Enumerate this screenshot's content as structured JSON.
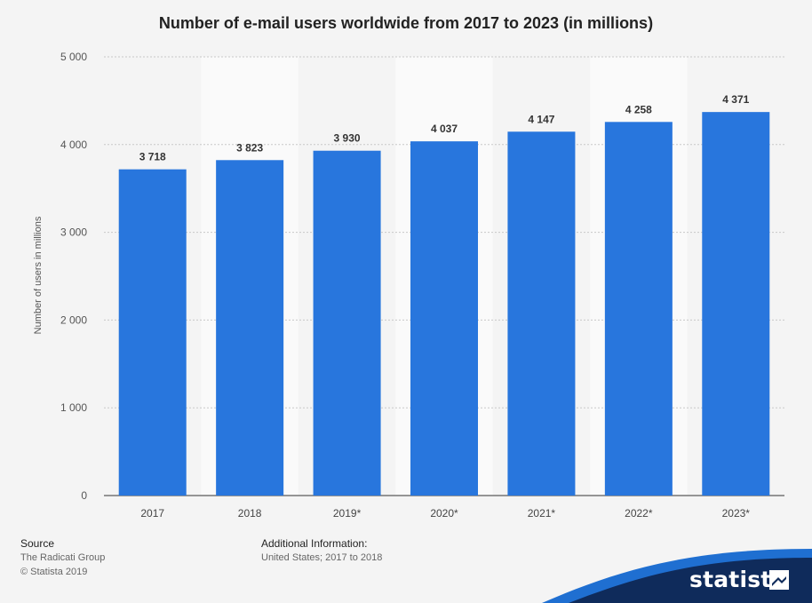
{
  "chart_data": {
    "type": "bar",
    "title": "Number of e-mail users worldwide from 2017 to 2023 (in millions)",
    "xlabel": "",
    "ylabel": "Number of users in millions",
    "categories": [
      "2017",
      "2018",
      "2019*",
      "2020*",
      "2021*",
      "2022*",
      "2023*"
    ],
    "values": [
      3718,
      3823,
      3930,
      4037,
      4147,
      4258,
      4371
    ],
    "value_labels": [
      "3 718",
      "3 823",
      "3 930",
      "4 037",
      "4 147",
      "4 258",
      "4 371"
    ],
    "ylim": [
      0,
      5000
    ],
    "yticks": [
      0,
      1000,
      2000,
      3000,
      4000,
      5000
    ],
    "ytick_labels": [
      "0",
      "1 000",
      "2 000",
      "3 000",
      "4 000",
      "5 000"
    ],
    "grid": true,
    "bar_color": "#2876dd",
    "alt_band_color": "#fafafa"
  },
  "footer": {
    "source_heading": "Source",
    "source_lines": [
      "The Radicati Group",
      "© Statista 2019"
    ],
    "additional_heading": "Additional Information:",
    "additional_lines": [
      "United States; 2017 to 2018"
    ]
  },
  "brand": {
    "name": "statista",
    "icon": "statista-logo-icon",
    "color_dark": "#0f2b5b",
    "color_accent": "#1f6fd1"
  }
}
